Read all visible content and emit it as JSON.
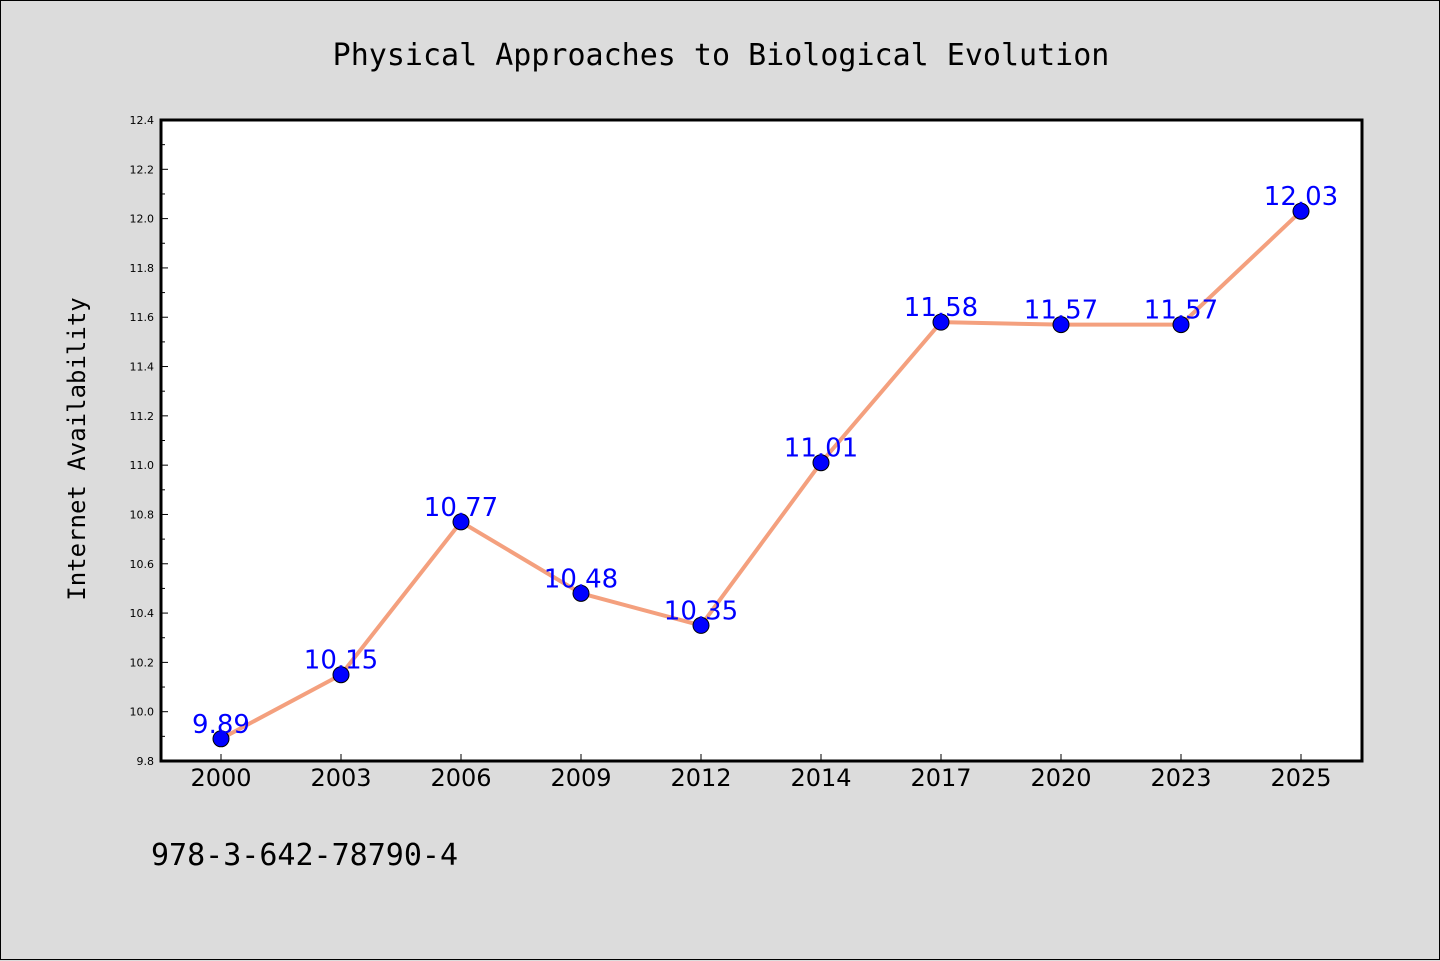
{
  "chart_data": {
    "type": "line",
    "title": "Physical Approaches to Biological Evolution",
    "xlabel": "",
    "ylabel": "Internet Availability",
    "categories": [
      "2000",
      "2003",
      "2006",
      "2009",
      "2012",
      "2014",
      "2017",
      "2020",
      "2023",
      "2025"
    ],
    "series": [
      {
        "values": [
          9.89,
          10.15,
          10.77,
          10.48,
          10.35,
          11.01,
          11.58,
          11.57,
          11.57,
          12.03
        ],
        "labels": [
          "9.89",
          "10.15",
          "10.77",
          "10.48",
          "10.35",
          "11.01",
          "11.58",
          "11.57",
          "11.57",
          "12.03"
        ],
        "line_color": "#f4a07e",
        "marker_color": "#0000ff"
      }
    ],
    "ylim": [
      9.8,
      12.4
    ],
    "yticks": [
      "9.8",
      "10.0",
      "10.2",
      "10.4",
      "10.6",
      "10.8",
      "11.0",
      "11.2",
      "11.4",
      "11.6",
      "11.8",
      "12.0",
      "12.2",
      "12.4"
    ],
    "grid": false,
    "legend": "none",
    "data_label_color": "#0000ff"
  },
  "footer": {
    "isbn": "978-3-642-78790-4"
  },
  "colors": {
    "background": "#dcdcdc",
    "plot_background": "#ffffff"
  }
}
